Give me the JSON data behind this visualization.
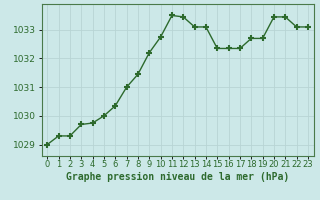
{
  "x": [
    0,
    1,
    2,
    3,
    4,
    5,
    6,
    7,
    8,
    9,
    10,
    11,
    12,
    13,
    14,
    15,
    16,
    17,
    18,
    19,
    20,
    21,
    22,
    23
  ],
  "y": [
    1029.0,
    1029.3,
    1029.3,
    1029.7,
    1029.75,
    1030.0,
    1030.35,
    1031.0,
    1031.45,
    1032.2,
    1032.75,
    1033.5,
    1033.45,
    1033.1,
    1033.1,
    1032.35,
    1032.35,
    1032.35,
    1032.7,
    1032.7,
    1033.45,
    1033.45,
    1033.1,
    1033.1
  ],
  "line_color": "#2d6a2d",
  "marker": "+",
  "marker_size": 4,
  "marker_lw": 1.5,
  "bg_color": "#cce8e8",
  "grid_color_major": "#b8d4d4",
  "grid_color_minor": "#d4e8e8",
  "ylabel_ticks": [
    1029,
    1030,
    1031,
    1032,
    1033
  ],
  "xlabel_label": "Graphe pression niveau de la mer (hPa)",
  "xlabel_fontsize": 7,
  "tick_fontsize": 6.5,
  "ylim": [
    1028.6,
    1033.9
  ],
  "xlim": [
    -0.5,
    23.5
  ],
  "spine_color": "#4a7a4a",
  "line_width": 1.0
}
